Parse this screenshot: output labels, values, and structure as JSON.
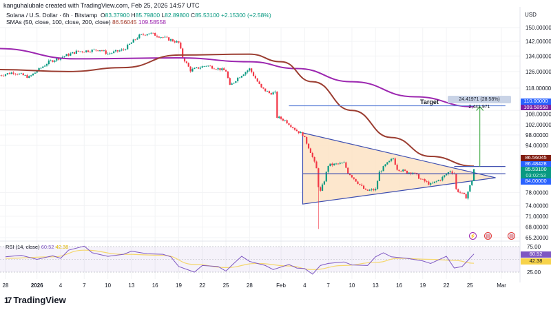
{
  "header": {
    "attribution": "kanguhalubale created with TradingView.com, Feb 25, 2026 14:57 UTC",
    "symbol": "Solana / U.S. Dollar · 6h · Bitstamp",
    "o_label": "O",
    "o": "83.37900",
    "h_label": "H",
    "h": "85.79800",
    "l_label": "L",
    "l": "82.89800",
    "c_label": "C",
    "c": "85.53100",
    "change": "+2.15300 (+2.58%)",
    "sma_label": "SMAs (50, close, 100, close, 200, close)",
    "sma50": "86.56045",
    "sma200": "109.58558"
  },
  "axis": {
    "currency": "USD"
  },
  "badges": {
    "target": "110.00000",
    "sma200": "109.58558",
    "sma50": "86.56045",
    "level_upper": "86.48428",
    "last": "85.53100",
    "countdown": "03:02:53",
    "level": "84.00000"
  },
  "annotations": {
    "target_label": "Target",
    "measure": "24.41971 (28.58%) 2,441,971"
  },
  "rsi": {
    "label": "RSI (14, close)",
    "value": "60.52",
    "ma": "42.38",
    "ticks": [
      "75.00",
      "50.00",
      "25.00"
    ]
  },
  "logo": "TradingView",
  "colors": {
    "up": "#089981",
    "down": "#f23645",
    "sma50": "#9b3d31",
    "sma200": "#9c27b0",
    "triangle": "#3f4fb0",
    "triangle_fill": "#fde3c4",
    "target_line": "#5b7fd6",
    "arrow": "#4caf50",
    "rsi": "#7e57c2",
    "rsi_ma": "#f5d76e"
  },
  "event_icons": [
    "lightning-icon",
    "us-flag-icon",
    "us-flag-icon"
  ],
  "chart_data": {
    "type": "candlestick",
    "title": "Solana / U.S. Dollar · 6h · Bitstamp",
    "y_scale": "log",
    "ylim": [
      65.2,
      152
    ],
    "y_ticks": [
      150,
      142,
      134,
      126,
      118,
      108,
      102,
      98,
      94,
      78,
      74,
      71,
      68,
      65.2
    ],
    "x_ticks": [
      {
        "label": "28",
        "date": "2025-12-28"
      },
      {
        "label": "2026",
        "date": "2026-01-01"
      },
      {
        "label": "4",
        "date": "2026-01-04"
      },
      {
        "label": "7",
        "date": "2026-01-07"
      },
      {
        "label": "10",
        "date": "2026-01-10"
      },
      {
        "label": "13",
        "date": "2026-01-13"
      },
      {
        "label": "16",
        "date": "2026-01-16"
      },
      {
        "label": "19",
        "date": "2026-01-19"
      },
      {
        "label": "22",
        "date": "2026-01-22"
      },
      {
        "label": "25",
        "date": "2026-01-25"
      },
      {
        "label": "28",
        "date": "2026-01-28"
      },
      {
        "label": "Feb",
        "date": "2026-02-01"
      },
      {
        "label": "4",
        "date": "2026-02-04"
      },
      {
        "label": "7",
        "date": "2026-02-07"
      },
      {
        "label": "10",
        "date": "2026-02-10"
      },
      {
        "label": "13",
        "date": "2026-02-13"
      },
      {
        "label": "16",
        "date": "2026-02-16"
      },
      {
        "label": "19",
        "date": "2026-02-19"
      },
      {
        "label": "22",
        "date": "2026-02-22"
      },
      {
        "label": "25",
        "date": "2026-02-25"
      },
      {
        "label": "Mar",
        "date": "2026-03-01"
      }
    ],
    "price_path": [
      [
        "2025-12-27",
        123.9
      ],
      [
        "2025-12-29",
        125.6
      ],
      [
        "2025-12-31",
        123.2
      ],
      [
        "2026-01-02 12:00",
        130.9
      ],
      [
        "2026-01-06",
        136.3
      ],
      [
        "2026-01-09",
        137.4
      ],
      [
        "2026-01-10",
        135.2
      ],
      [
        "2026-01-12",
        137.4
      ],
      [
        "2026-01-14",
        145.2
      ],
      [
        "2026-01-15 06:00",
        146.8
      ],
      [
        "2026-01-18",
        142.8
      ],
      [
        "2026-01-19",
        141.2
      ],
      [
        "2026-01-19 12:00",
        133.4
      ],
      [
        "2026-01-20 12:00",
        126.6
      ],
      [
        "2026-01-22 12:00",
        129.1
      ],
      [
        "2026-01-25",
        126.3
      ],
      [
        "2026-01-25 12:00",
        118.9
      ],
      [
        "2026-01-26 12:00",
        122.9
      ],
      [
        "2026-01-28",
        127.3
      ],
      [
        "2026-01-29 12:00",
        118.0
      ],
      [
        "2026-01-30 12:00",
        115.7
      ],
      [
        "2026-01-31 06:00",
        115.7
      ],
      [
        "2026-01-31 12:00",
        105.2
      ],
      [
        "2026-02-01 12:00",
        103.8
      ],
      [
        "2026-02-03",
        99.6
      ],
      [
        "2026-02-03 18:00",
        98.2
      ],
      [
        "2026-02-04 18:00",
        91.7
      ],
      [
        "2026-02-05 12:00",
        85.7
      ],
      [
        "2026-02-05 18:00",
        80.0
      ],
      [
        "2026-02-06",
        78.3
      ],
      [
        "2026-02-06 12:00",
        81.8
      ],
      [
        "2026-02-07",
        86.9
      ],
      [
        "2026-02-09",
        87.6
      ],
      [
        "2026-02-09 12:00",
        84.5
      ],
      [
        "2026-02-10 18:00",
        81.1
      ],
      [
        "2026-02-11 18:00",
        78.5
      ],
      [
        "2026-02-13",
        78.9
      ],
      [
        "2026-02-13 12:00",
        84.5
      ],
      [
        "2026-02-14 06:00",
        86.9
      ],
      [
        "2026-02-15 06:00",
        89.3
      ],
      [
        "2026-02-15 18:00",
        85.7
      ],
      [
        "2026-02-17",
        84.5
      ],
      [
        "2026-02-17 18:00",
        84.5
      ],
      [
        "2026-02-18 18:00",
        82.2
      ],
      [
        "2026-02-20",
        80.5
      ],
      [
        "2026-02-21 06:00",
        82.2
      ],
      [
        "2026-02-22 12:00",
        85.0
      ],
      [
        "2026-02-23",
        84.1
      ],
      [
        "2026-02-23 06:00",
        78.9
      ],
      [
        "2026-02-24",
        77.5
      ],
      [
        "2026-02-24 12:00",
        76.6
      ],
      [
        "2026-02-24 18:00",
        78.3
      ],
      [
        "2026-02-25 06:00",
        81.8
      ],
      [
        "2026-02-25 12:00",
        85.531
      ]
    ],
    "spike_low": {
      "date": "2026-02-05 18:00",
      "price": 67.5
    },
    "sma50": [
      [
        "2025-12-27",
        127
      ],
      [
        "2026-01-05",
        126
      ],
      [
        "2026-01-12",
        128
      ],
      [
        "2026-01-19",
        134.5
      ],
      [
        "2026-01-28",
        135
      ],
      [
        "2026-02-01",
        131
      ],
      [
        "2026-02-05",
        121
      ],
      [
        "2026-02-10",
        108
      ],
      [
        "2026-02-15",
        97
      ],
      [
        "2026-02-20",
        90
      ],
      [
        "2026-02-25 12:00",
        86.56045
      ]
    ],
    "sma200": [
      [
        "2025-12-27",
        138
      ],
      [
        "2026-01-06",
        132.5
      ],
      [
        "2026-01-19",
        133
      ],
      [
        "2026-01-28",
        131
      ],
      [
        "2026-02-03",
        127.5
      ],
      [
        "2026-02-10",
        121
      ],
      [
        "2026-02-18",
        114
      ],
      [
        "2026-02-25 12:00",
        109.58558
      ]
    ],
    "drawings": {
      "triangle": [
        [
          "2026-02-03 18:00",
          98.8
        ],
        [
          "2026-02-28 06:00",
          82.7
        ],
        [
          "2026-02-03 18:00",
          74.5
        ]
      ],
      "level": {
        "from": "2026-02-03 18:00",
        "to": "2026-03-01 12:00",
        "price": 84.0
      },
      "level_upper": {
        "from": "2026-02-23",
        "to": "2026-03-01 12:00",
        "price": 86.48428
      },
      "target": {
        "from": "2026-02-02",
        "to": "2026-03-01 12:00",
        "price": 110.0
      },
      "arrow": {
        "date": "2026-02-26 06:00",
        "from": 86.48428,
        "to": 110.0
      }
    },
    "rsi": [
      [
        "2025-12-28",
        55
      ],
      [
        "2025-12-30",
        58
      ],
      [
        "2026-01-01",
        50
      ],
      [
        "2026-01-03",
        57
      ],
      [
        "2026-01-04",
        52
      ],
      [
        "2026-01-05",
        68
      ],
      [
        "2026-01-07",
        76
      ],
      [
        "2026-01-08",
        63
      ],
      [
        "2026-01-10",
        56
      ],
      [
        "2026-01-12",
        60
      ],
      [
        "2026-01-13",
        66
      ],
      [
        "2026-01-15",
        61
      ],
      [
        "2026-01-17",
        60
      ],
      [
        "2026-01-18",
        55
      ],
      [
        "2026-01-19",
        36
      ],
      [
        "2026-01-21",
        25
      ],
      [
        "2026-01-22",
        38
      ],
      [
        "2026-01-24",
        36
      ],
      [
        "2026-01-25",
        27
      ],
      [
        "2026-01-26",
        42
      ],
      [
        "2026-01-27",
        56
      ],
      [
        "2026-01-28",
        46
      ],
      [
        "2026-01-30",
        38
      ],
      [
        "2026-01-31",
        30
      ],
      [
        "2026-02-02",
        40
      ],
      [
        "2026-02-03",
        33
      ],
      [
        "2026-02-04",
        32
      ],
      [
        "2026-02-05",
        21
      ],
      [
        "2026-02-06",
        38
      ],
      [
        "2026-02-07",
        42
      ],
      [
        "2026-02-09",
        45
      ],
      [
        "2026-02-10",
        39
      ],
      [
        "2026-02-12",
        38
      ],
      [
        "2026-02-13",
        55
      ],
      [
        "2026-02-14",
        63
      ],
      [
        "2026-02-15",
        55
      ],
      [
        "2026-02-17",
        52
      ],
      [
        "2026-02-19",
        47
      ],
      [
        "2026-02-20",
        42
      ],
      [
        "2026-02-22",
        56
      ],
      [
        "2026-02-23",
        33
      ],
      [
        "2026-02-24",
        36
      ],
      [
        "2026-02-25 12:00",
        60.52
      ]
    ],
    "rsi_ma": [
      [
        "2025-12-28",
        52
      ],
      [
        "2026-01-03",
        55
      ],
      [
        "2026-01-07",
        68
      ],
      [
        "2026-01-12",
        60
      ],
      [
        "2026-01-17",
        58
      ],
      [
        "2026-01-21",
        40
      ],
      [
        "2026-01-25",
        34
      ],
      [
        "2026-01-29",
        42
      ],
      [
        "2026-02-02",
        37
      ],
      [
        "2026-02-05",
        30
      ],
      [
        "2026-02-09",
        38
      ],
      [
        "2026-02-13",
        44
      ],
      [
        "2026-02-16",
        52
      ],
      [
        "2026-02-20",
        50
      ],
      [
        "2026-02-23",
        48
      ],
      [
        "2026-02-25 12:00",
        42.38
      ]
    ],
    "rsi_range": [
      0,
      100
    ],
    "rsi_bands": [
      25,
      75
    ]
  }
}
